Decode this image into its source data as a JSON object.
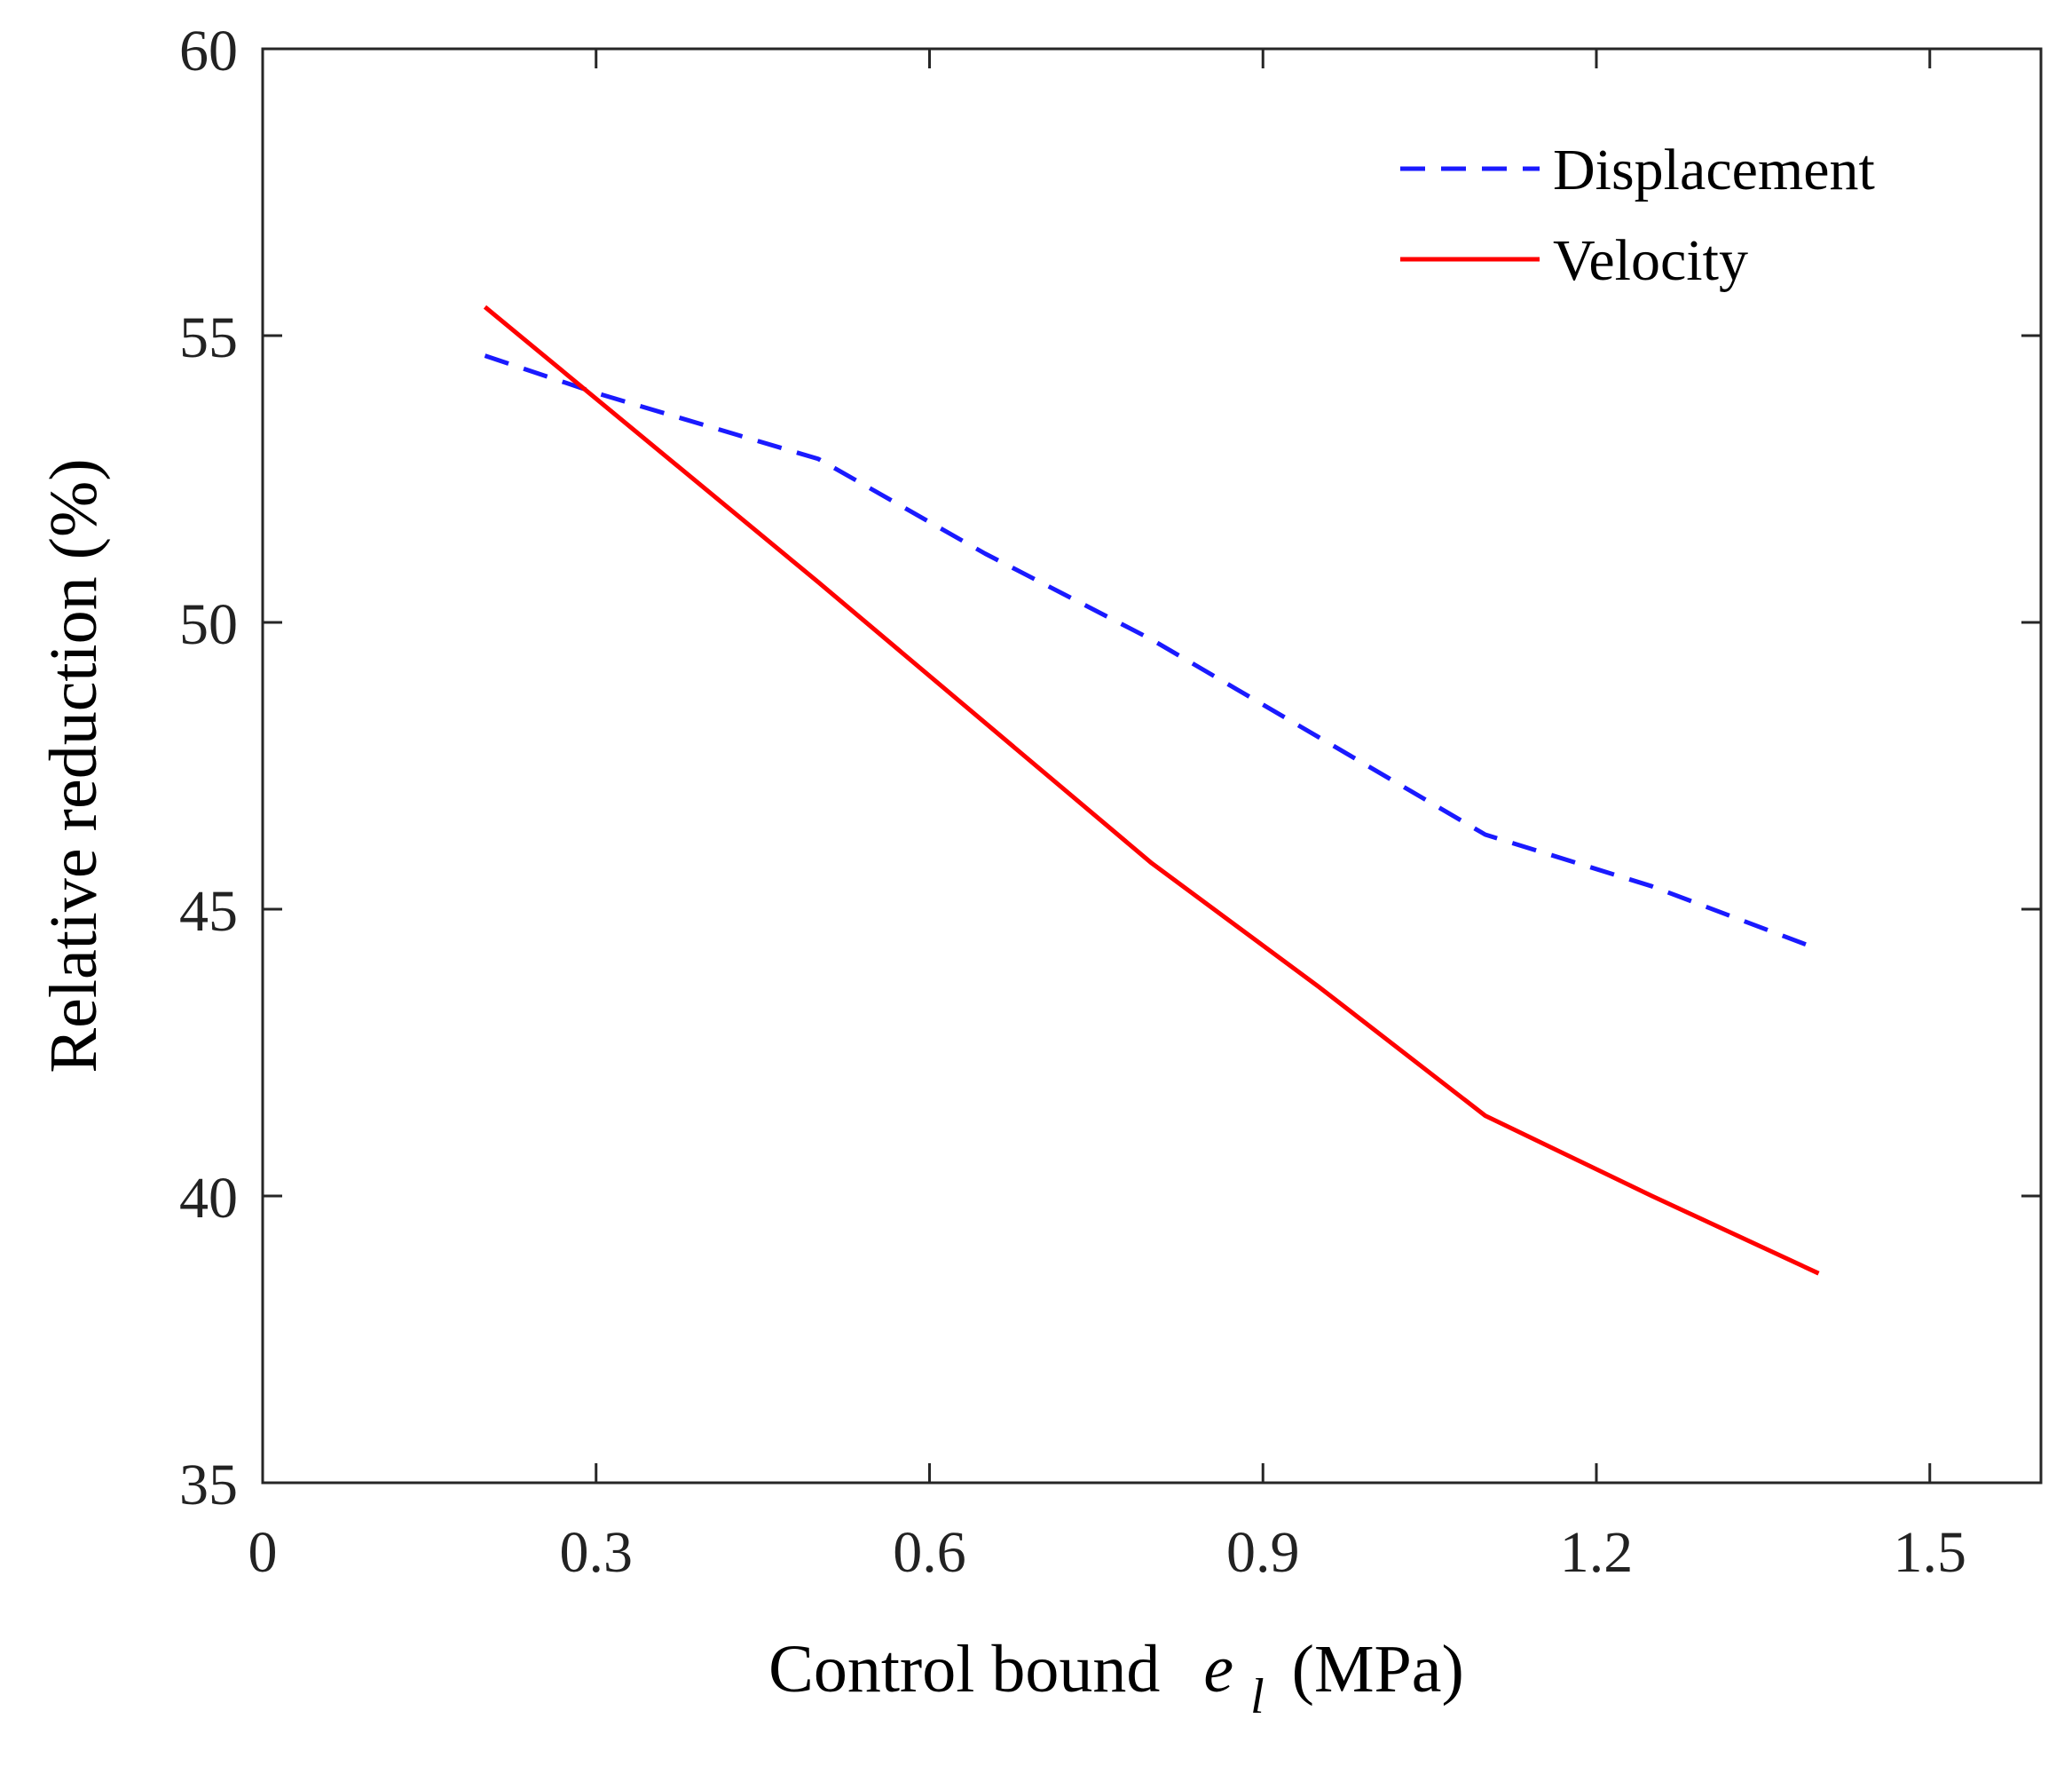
{
  "chart_data": {
    "type": "line",
    "title": "",
    "xlabel": "Control bound",
    "xlabel_var": "e",
    "xlabel_sub": "l",
    "xlabel_unit": "(MPa)",
    "ylabel": "Relative reduction (%)",
    "xlim": [
      0,
      1.6
    ],
    "ylim": [
      35,
      60
    ],
    "xticks": [
      0,
      0.3,
      0.6,
      0.9,
      1.2,
      1.5
    ],
    "xtick_labels": [
      "0",
      "0.3",
      "0.6",
      "0.9",
      "1.2",
      "1.5"
    ],
    "yticks": [
      35,
      40,
      45,
      50,
      55,
      60
    ],
    "ytick_labels": [
      "35",
      "40",
      "45",
      "50",
      "55",
      "60"
    ],
    "grid": false,
    "legend_position": "top-right",
    "series": [
      {
        "name": "Displacement",
        "color": "#1a1aff",
        "style": "dashed",
        "x": [
          0.2,
          0.3,
          0.5,
          0.65,
          0.8,
          0.95,
          1.1,
          1.25,
          1.4
        ],
        "y": [
          54.65,
          54.0,
          52.85,
          51.2,
          49.7,
          48.0,
          46.3,
          45.4,
          44.3
        ]
      },
      {
        "name": "Velocity",
        "color": "#ff0000",
        "style": "solid",
        "x": [
          0.2,
          0.5,
          0.8,
          0.95,
          1.1,
          1.25,
          1.4
        ],
        "y": [
          55.5,
          50.7,
          45.8,
          43.65,
          41.4,
          40.0,
          38.65
        ]
      }
    ]
  }
}
